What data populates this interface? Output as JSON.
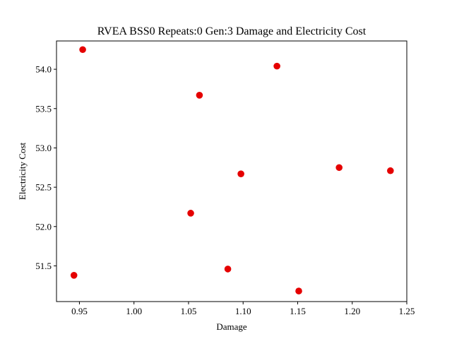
{
  "chart_data": {
    "type": "scatter",
    "title": "RVEA BSS0 Repeats:0 Gen:3 Damage and Electricity Cost",
    "xlabel": "Damage",
    "ylabel": "Electricity Cost",
    "xlim": [
      0.929,
      1.25
    ],
    "ylim": [
      51.046,
      54.36
    ],
    "xticks": [
      0.95,
      1.0,
      1.05,
      1.1,
      1.15,
      1.2,
      1.25
    ],
    "xtick_labels": [
      "0.95",
      "1.00",
      "1.05",
      "1.10",
      "1.15",
      "1.20",
      "1.25"
    ],
    "yticks": [
      51.5,
      52.0,
      52.5,
      53.0,
      53.5,
      54.0
    ],
    "ytick_labels": [
      "51.5",
      "52.0",
      "52.5",
      "53.0",
      "53.5",
      "54.0"
    ],
    "grid": false,
    "marker_color": "#e50000",
    "series": [
      {
        "points": [
          {
            "x": 0.953,
            "y": 54.25
          },
          {
            "x": 1.131,
            "y": 54.04
          },
          {
            "x": 1.06,
            "y": 53.67
          },
          {
            "x": 1.188,
            "y": 52.75
          },
          {
            "x": 1.235,
            "y": 52.71
          },
          {
            "x": 1.098,
            "y": 52.67
          },
          {
            "x": 1.052,
            "y": 52.17
          },
          {
            "x": 1.086,
            "y": 51.46
          },
          {
            "x": 0.945,
            "y": 51.38
          },
          {
            "x": 1.151,
            "y": 51.18
          }
        ]
      }
    ]
  }
}
